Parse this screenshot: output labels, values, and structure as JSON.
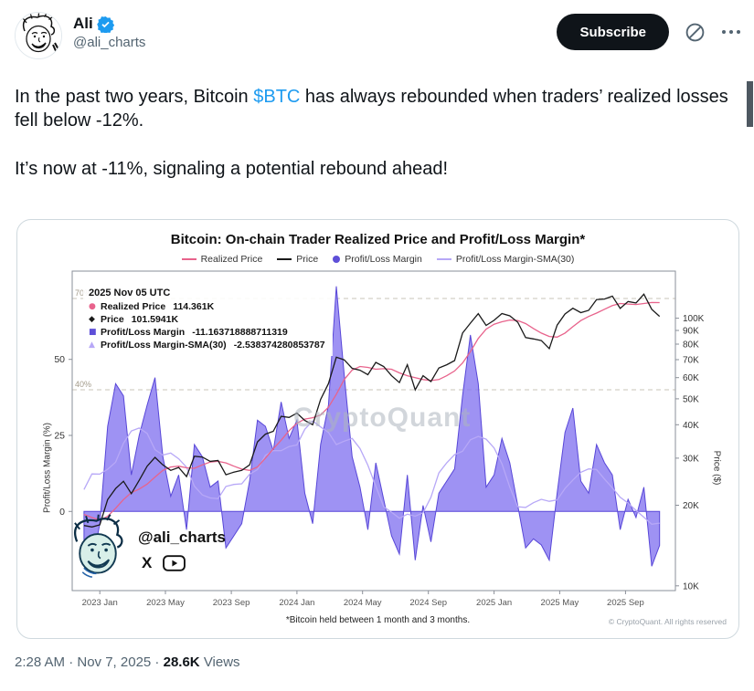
{
  "header": {
    "display_name": "Ali",
    "handle": "@ali_charts",
    "subscribe_label": "Subscribe"
  },
  "tweet": {
    "p1_before": "In the past two years, Bitcoin ",
    "cashtag": "$BTC",
    "p1_after": " has always rebounded when traders’ realized losses fell below -12%.",
    "p2": "It’s now at -11%, signaling a potential rebound ahead!"
  },
  "chart": {
    "title": "Bitcoin: On-chain Trader Realized Price and Profit/Loss Margin*",
    "legend": [
      {
        "label": "Realized Price",
        "color": "#e8638c",
        "marker": "line"
      },
      {
        "label": "Price",
        "color": "#1a1a1a",
        "marker": "line"
      },
      {
        "label": "Profit/Loss Margin",
        "color": "#5e4fd8",
        "marker": "dot"
      },
      {
        "label": "Profit/Loss Margin-SMA(30)",
        "color": "#b7a8f7",
        "marker": "line"
      }
    ],
    "tooltip": {
      "header": "2025 Nov 05 UTC",
      "rows": [
        {
          "marker": "circle",
          "color": "#e8638c",
          "label": "Realized Price",
          "value": "114.361K"
        },
        {
          "marker": "diamond",
          "color": "#1a1a1a",
          "label": "Price",
          "value": "101.5941K"
        },
        {
          "marker": "square",
          "color": "#5e4fd8",
          "label": "Profit/Loss Margin",
          "value": "-11.163718888711319"
        },
        {
          "marker": "triangle",
          "color": "#b7a8f7",
          "label": "Profit/Loss Margin-SMA(30)",
          "value": "-2.538374280853787"
        }
      ]
    },
    "watermark": "CryptoQuant",
    "overlay_handle": "@ali_charts",
    "ylabel_left": "Profit/Loss Margin (%)",
    "ylabel_right": "Price ($)",
    "footnote": "*Bitcoin held between 1 month and 3 months.",
    "copyright": "© CryptoQuant. All rights reserved"
  },
  "footer": {
    "timestamp": "2:28 AM · Nov 7, 2025",
    "sep": " · ",
    "views_count": "28.6K",
    "views_label": "Views"
  },
  "chart_data": {
    "type": "line",
    "x_range": [
      2022.86,
      2025.92
    ],
    "x": [
      2022.92,
      2022.96,
      2023.0,
      2023.04,
      2023.08,
      2023.12,
      2023.16,
      2023.2,
      2023.24,
      2023.28,
      2023.32,
      2023.36,
      2023.4,
      2023.44,
      2023.48,
      2023.52,
      2023.56,
      2023.6,
      2023.64,
      2023.68,
      2023.72,
      2023.76,
      2023.8,
      2023.84,
      2023.88,
      2023.92,
      2023.96,
      2024.0,
      2024.04,
      2024.08,
      2024.12,
      2024.16,
      2024.2,
      2024.24,
      2024.28,
      2024.32,
      2024.36,
      2024.4,
      2024.44,
      2024.48,
      2024.52,
      2024.56,
      2024.6,
      2024.64,
      2024.68,
      2024.72,
      2024.76,
      2024.8,
      2024.84,
      2024.88,
      2024.92,
      2024.96,
      2025.0,
      2025.04,
      2025.08,
      2025.12,
      2025.16,
      2025.2,
      2025.24,
      2025.28,
      2025.32,
      2025.36,
      2025.4,
      2025.44,
      2025.48,
      2025.52,
      2025.56,
      2025.6,
      2025.64,
      2025.68,
      2025.72,
      2025.76,
      2025.8,
      2025.84
    ],
    "series": [
      {
        "id": "realized",
        "name": "Realized Price",
        "axis": "right",
        "color": "#e8638c",
        "values": [
          18.5,
          18.0,
          17.6,
          18.2,
          19.5,
          21.0,
          22.3,
          23.0,
          24.0,
          25.5,
          27.0,
          27.8,
          28.0,
          27.6,
          27.5,
          28.3,
          29.0,
          29.2,
          28.8,
          28.0,
          27.3,
          27.0,
          27.8,
          30.0,
          32.5,
          35.0,
          38.0,
          40.5,
          42.0,
          42.5,
          43.5,
          46.5,
          52.0,
          59.0,
          64.0,
          66.0,
          65.5,
          64.5,
          64.8,
          64.5,
          62.5,
          61.0,
          60.0,
          59.0,
          58.5,
          59.0,
          61.0,
          63.5,
          68.0,
          75.0,
          84.0,
          91.0,
          95.0,
          97.0,
          98.5,
          98.0,
          95.5,
          91.5,
          88.0,
          85.5,
          85.0,
          88.0,
          93.0,
          98.0,
          101.5,
          104.5,
          108.0,
          111.5,
          113.5,
          113.0,
          112.5,
          113.5,
          114.5,
          114.4
        ]
      },
      {
        "id": "price",
        "name": "Price",
        "axis": "right",
        "color": "#1a1a1a",
        "values": [
          16.8,
          16.6,
          16.9,
          21.0,
          23.1,
          24.6,
          22.1,
          24.8,
          28.0,
          30.2,
          28.3,
          27.0,
          27.7,
          25.6,
          30.5,
          30.3,
          29.2,
          29.4,
          26.0,
          26.6,
          27.0,
          28.3,
          34.5,
          36.9,
          37.8,
          43.0,
          42.6,
          44.2,
          41.5,
          40.0,
          49.7,
          57.0,
          71.5,
          69.9,
          65.0,
          63.9,
          61.5,
          68.4,
          66.0,
          61.0,
          57.5,
          67.0,
          54.0,
          61.0,
          58.0,
          65.2,
          67.0,
          69.5,
          88.0,
          95.9,
          104.0,
          94.0,
          98.2,
          104.1,
          102.1,
          96.6,
          84.7,
          83.7,
          82.5,
          77.0,
          94.2,
          103.7,
          109.0,
          104.9,
          107.0,
          117.4,
          118.0,
          121.0,
          108.8,
          115.5,
          114.0,
          123.0,
          108.0,
          101.6
        ]
      },
      {
        "id": "margin",
        "name": "Profit/Loss Margin",
        "axis": "left",
        "color": "#5847d8",
        "fill_color": "#8677f0",
        "fill_opacity": 0.8,
        "values": [
          -12,
          -18,
          -4,
          28,
          42,
          38,
          12,
          25,
          35,
          44,
          18,
          5,
          12,
          -6,
          22,
          18,
          8,
          10,
          -12,
          -8,
          -4,
          10,
          30,
          28,
          20,
          36,
          24,
          30,
          6,
          -4,
          22,
          35,
          74,
          45,
          18,
          8,
          -6,
          16,
          4,
          -8,
          -14,
          12,
          -16,
          2,
          -10,
          6,
          10,
          14,
          38,
          58,
          42,
          8,
          12,
          24,
          16,
          2,
          -12,
          -9,
          -11,
          -16,
          6,
          26,
          34,
          10,
          6,
          22,
          16,
          12,
          -6,
          4,
          -2,
          8,
          -18,
          -11.16
        ]
      },
      {
        "id": "sma",
        "name": "Profit/Loss Margin-SMA(30)",
        "axis": "left",
        "color": "#b7a8f7",
        "derived": "sma_of_margin",
        "window": 9
      }
    ],
    "left_axis": {
      "label": "Profit/Loss Margin (%)",
      "range": [
        -26,
        79
      ],
      "ticks": [
        0,
        25,
        50
      ],
      "dashed_lines": [
        70,
        40
      ]
    },
    "right_axis": {
      "label": "Price ($)",
      "scale": "log",
      "range": [
        9.6,
        150
      ],
      "ticks": [
        {
          "v": 10,
          "label": "10K"
        },
        {
          "v": 20,
          "label": "20K"
        },
        {
          "v": 30,
          "label": "30K"
        },
        {
          "v": 40,
          "label": "40K"
        },
        {
          "v": 50,
          "label": "50K"
        },
        {
          "v": 60,
          "label": "60K"
        },
        {
          "v": 70,
          "label": "70K"
        },
        {
          "v": 80,
          "label": "80K"
        },
        {
          "v": 90,
          "label": "90K"
        },
        {
          "v": 100,
          "label": "100K"
        }
      ]
    },
    "x_ticks": [
      {
        "v": 2023.0,
        "label": "2023 Jan"
      },
      {
        "v": 2023.333,
        "label": "2023 May"
      },
      {
        "v": 2023.667,
        "label": "2023 Sep"
      },
      {
        "v": 2024.0,
        "label": "2024 Jan"
      },
      {
        "v": 2024.333,
        "label": "2024 May"
      },
      {
        "v": 2024.667,
        "label": "2024 Sep"
      },
      {
        "v": 2025.0,
        "label": "2025 Jan"
      },
      {
        "v": 2025.333,
        "label": "2025 May"
      },
      {
        "v": 2025.667,
        "label": "2025 Sep"
      }
    ]
  }
}
